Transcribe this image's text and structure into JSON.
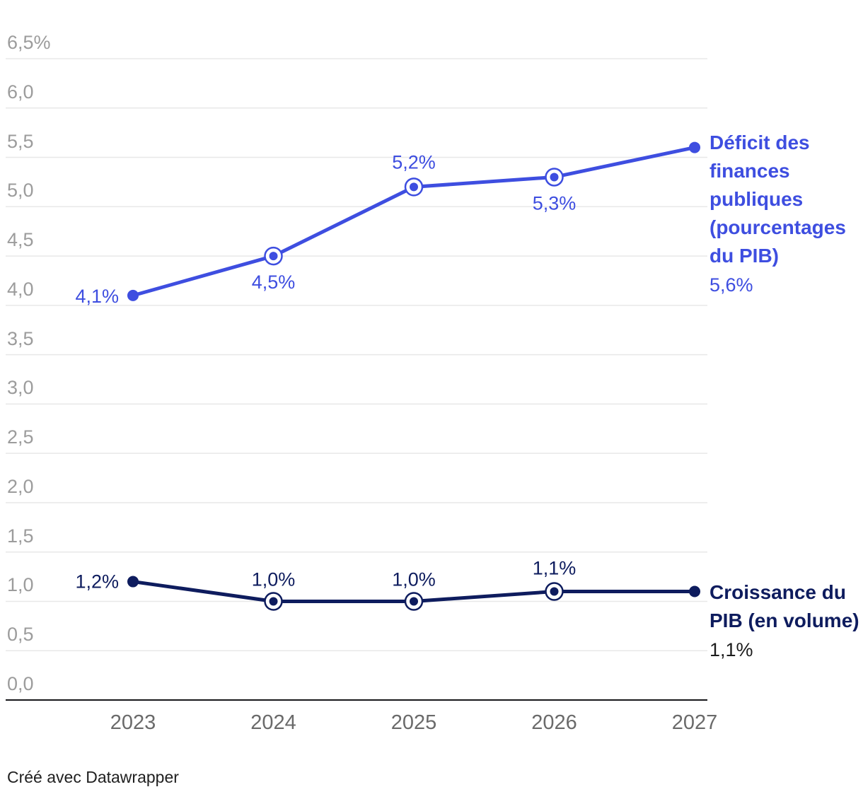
{
  "chart": {
    "footer": "Créé avec Datawrapper"
  },
  "chart_data": {
    "type": "line",
    "x": [
      "2023",
      "2024",
      "2025",
      "2026",
      "2027"
    ],
    "ylim": [
      0,
      6.5
    ],
    "ytick_step": 0.5,
    "grid": true,
    "legend_position": "right",
    "yticks": [
      {
        "value": 6.5,
        "label": "6,5%"
      },
      {
        "value": 6.0,
        "label": "6,0"
      },
      {
        "value": 5.5,
        "label": "5,5"
      },
      {
        "value": 5.0,
        "label": "5,0"
      },
      {
        "value": 4.5,
        "label": "4,5"
      },
      {
        "value": 4.0,
        "label": "4,0"
      },
      {
        "value": 3.5,
        "label": "3,5"
      },
      {
        "value": 3.0,
        "label": "3,0"
      },
      {
        "value": 2.5,
        "label": "2,5"
      },
      {
        "value": 2.0,
        "label": "2,0"
      },
      {
        "value": 1.5,
        "label": "1,5"
      },
      {
        "value": 1.0,
        "label": "1,0"
      },
      {
        "value": 0.5,
        "label": "0,5"
      },
      {
        "value": 0.0,
        "label": "0,0"
      }
    ],
    "series": [
      {
        "name": "Déficit des finances publiques (pourcentages du PIB)",
        "values": [
          4.1,
          4.5,
          5.2,
          5.3,
          5.6
        ],
        "point_labels": [
          "4,1%",
          "4,5%",
          "5,2%",
          "5,3%",
          "5,6%"
        ],
        "legend_value": "5,6%",
        "color": "#3e4ee0"
      },
      {
        "name": "Croissance du PIB (en volume)",
        "values": [
          1.2,
          1.0,
          1.0,
          1.1,
          1.1
        ],
        "point_labels": [
          "1,2%",
          "1,0%",
          "1,0%",
          "1,1%",
          "1,1%"
        ],
        "legend_value": "1,1%",
        "color": "#0e1c5e"
      }
    ],
    "colors": {
      "gridline": "#e8e8e8",
      "axis": "#17171a",
      "ytick_text": "#9c9c9c",
      "xtick_text": "#6a6a6a"
    }
  }
}
